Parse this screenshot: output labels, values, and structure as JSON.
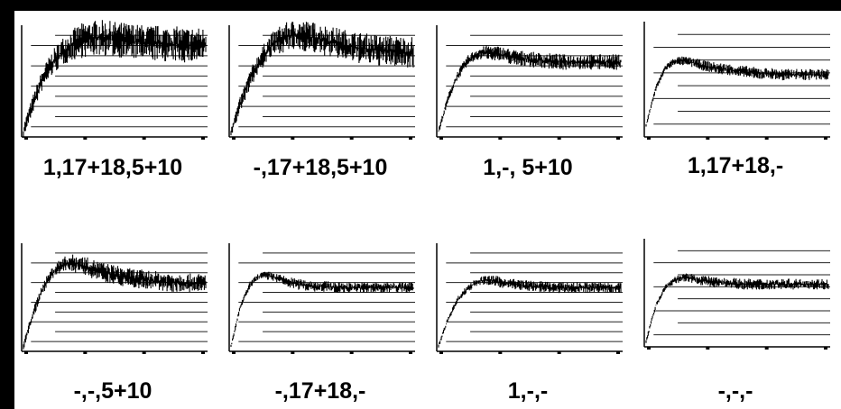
{
  "chart_data": [
    {
      "type": "line",
      "title": "1,17+18,5+10",
      "series": [
        {
          "values": [
            0.05,
            0.3,
            0.52,
            0.66,
            0.76,
            0.82,
            0.86,
            0.88,
            0.89,
            0.88,
            0.87,
            0.86,
            0.85,
            0.84,
            0.84,
            0.83,
            0.83,
            0.82,
            0.82,
            0.82
          ]
        }
      ],
      "noise": 0.16,
      "gridlines": 10
    },
    {
      "type": "line",
      "title": "-,17+18,5+10",
      "series": [
        {
          "values": [
            0.05,
            0.3,
            0.52,
            0.68,
            0.8,
            0.87,
            0.9,
            0.91,
            0.9,
            0.88,
            0.86,
            0.84,
            0.82,
            0.8,
            0.79,
            0.78,
            0.77,
            0.77,
            0.76,
            0.76
          ]
        }
      ],
      "noise": 0.14,
      "gridlines": 10
    },
    {
      "type": "line",
      "title": "1,-, 5+10",
      "series": [
        {
          "values": [
            0.05,
            0.35,
            0.55,
            0.68,
            0.74,
            0.76,
            0.75,
            0.73,
            0.71,
            0.7,
            0.69,
            0.68,
            0.68,
            0.67,
            0.67,
            0.67,
            0.67,
            0.67,
            0.67,
            0.67
          ]
        }
      ],
      "noise": 0.07,
      "gridlines": 10
    },
    {
      "type": "line",
      "title": "1,17+18,-",
      "series": [
        {
          "values": [
            0.1,
            0.42,
            0.6,
            0.66,
            0.66,
            0.64,
            0.62,
            0.6,
            0.59,
            0.58,
            0.57,
            0.56,
            0.55,
            0.55,
            0.54,
            0.54,
            0.54,
            0.54,
            0.54,
            0.54
          ]
        }
      ],
      "noise": 0.05,
      "gridlines": 8
    },
    {
      "type": "line",
      "title": "-,-,5+10",
      "series": [
        {
          "values": [
            0.05,
            0.35,
            0.58,
            0.72,
            0.8,
            0.82,
            0.8,
            0.77,
            0.74,
            0.72,
            0.7,
            0.68,
            0.67,
            0.66,
            0.65,
            0.64,
            0.64,
            0.63,
            0.63,
            0.63
          ]
        }
      ],
      "noise": 0.09,
      "gridlines": 10
    },
    {
      "type": "line",
      "title": "-,17+18,-",
      "series": [
        {
          "values": [
            0.05,
            0.42,
            0.62,
            0.7,
            0.7,
            0.67,
            0.64,
            0.62,
            0.61,
            0.6,
            0.6,
            0.59,
            0.59,
            0.59,
            0.59,
            0.59,
            0.59,
            0.59,
            0.59,
            0.59
          ]
        }
      ],
      "noise": 0.05,
      "gridlines": 10
    },
    {
      "type": "line",
      "title": "1,-,-",
      "series": [
        {
          "values": [
            0.05,
            0.3,
            0.48,
            0.58,
            0.64,
            0.66,
            0.65,
            0.63,
            0.62,
            0.61,
            0.6,
            0.6,
            0.59,
            0.59,
            0.59,
            0.59,
            0.59,
            0.59,
            0.59,
            0.59
          ]
        }
      ],
      "noise": 0.05,
      "gridlines": 10
    },
    {
      "type": "line",
      "title": "-,-,-",
      "series": [
        {
          "values": [
            0.05,
            0.38,
            0.55,
            0.62,
            0.64,
            0.63,
            0.61,
            0.6,
            0.59,
            0.59,
            0.58,
            0.58,
            0.58,
            0.58,
            0.58,
            0.58,
            0.58,
            0.58,
            0.58,
            0.58
          ]
        }
      ],
      "noise": 0.05,
      "gridlines": 8
    }
  ]
}
